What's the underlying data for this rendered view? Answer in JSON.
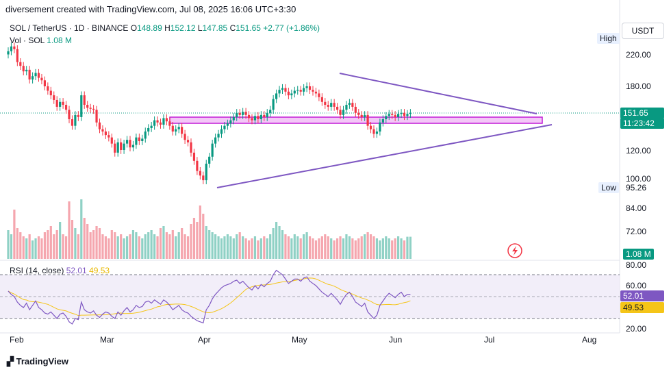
{
  "header": {
    "text": "diversement created with TradingView.com, Jul 08, 2025 16:06 UTC+3:30"
  },
  "legend": {
    "symbol": "SOL / TetherUS · 1D · BINANCE",
    "o_label": "O",
    "o": "148.89",
    "h_label": "H",
    "h": "152.12",
    "l_label": "L",
    "l": "147.85",
    "c_label": "C",
    "c": "151.65",
    "change": "+2.77 (+1.86%)",
    "vol_label": "Vol · SOL",
    "vol": "1.08 M",
    "rsi_label": "RSI (14, close)",
    "rsi": "52.01",
    "rsi_ma": "49.53"
  },
  "currency_button": "USDT",
  "price_axis": [
    "220.00",
    "180.00",
    "150.00",
    "120.00",
    "100.00",
    "84.00",
    "72.00"
  ],
  "tags": {
    "high": "High",
    "low": "Low",
    "low_value": "95.26",
    "last_price": "151.65",
    "countdown": "11:23:42",
    "volume": "1.08 M",
    "rsi": "52.01",
    "rsi_ma": "49.53"
  },
  "rsi_axis": [
    "80.00",
    "60.00",
    "20.00"
  ],
  "time_axis": [
    "Feb",
    "Mar",
    "Apr",
    "May",
    "Jun",
    "Jul",
    "Aug"
  ],
  "footer": {
    "logo": "TradingView"
  },
  "colors": {
    "up": "#089981",
    "down": "#f23645",
    "trend": "#7e57c2",
    "zone": "#c11ad6",
    "rsi": "#7e57c2",
    "rsi_ma": "#f5c518"
  },
  "chart_data": {
    "type": "candlestick",
    "symbol": "SOL/USDT",
    "interval": "1D",
    "y_scale": "log",
    "ylim": [
      88,
      245
    ],
    "closes": [
      225,
      232,
      228,
      210,
      205,
      198,
      200,
      188,
      192,
      196,
      190,
      187,
      180,
      175,
      170,
      165,
      158,
      163,
      160,
      155,
      146,
      140,
      150,
      148,
      170,
      160,
      157,
      156,
      155,
      143,
      137,
      135,
      132,
      130,
      125,
      118,
      126,
      120,
      125,
      128,
      122,
      124,
      130,
      127,
      129,
      135,
      138,
      140,
      145,
      143,
      141,
      147,
      144,
      140,
      135,
      137,
      139,
      133,
      128,
      126,
      118,
      112,
      105,
      102,
      99,
      110,
      115,
      125,
      130,
      133,
      137,
      140,
      142,
      145,
      148,
      152,
      150,
      153,
      150,
      147,
      145,
      149,
      146,
      150,
      148,
      152,
      155,
      166,
      172,
      176,
      178,
      174,
      170,
      172,
      175,
      176,
      174,
      178,
      180,
      176,
      174,
      172,
      168,
      163,
      160,
      158,
      162,
      158,
      155,
      150,
      155,
      160,
      162,
      158,
      152,
      150,
      148,
      150,
      140,
      137,
      133,
      135,
      143,
      146,
      149,
      151,
      150,
      148,
      151,
      152,
      149,
      151,
      152
    ],
    "volumes_mSOL": [
      1.4,
      1.2,
      2.4,
      1.5,
      1.3,
      1.1,
      1.0,
      1.2,
      0.9,
      1.0,
      1.1,
      1.0,
      1.3,
      1.4,
      1.6,
      1.2,
      1.4,
      1.8,
      1.2,
      1.1,
      2.8,
      1.9,
      1.5,
      1.2,
      2.9,
      2.0,
      1.7,
      1.3,
      1.4,
      1.6,
      1.5,
      1.2,
      1.1,
      1.0,
      1.4,
      1.3,
      1.1,
      1.2,
      1.0,
      1.1,
      1.2,
      1.4,
      1.3,
      1.1,
      1.0,
      1.2,
      1.3,
      1.4,
      1.2,
      1.1,
      1.5,
      1.6,
      1.3,
      1.2,
      1.4,
      1.1,
      1.3,
      1.5,
      1.2,
      1.1,
      1.7,
      2.0,
      1.8,
      2.6,
      2.2,
      1.6,
      1.4,
      1.3,
      1.2,
      1.1,
      1.0,
      1.1,
      1.2,
      1.1,
      1.0,
      1.2,
      1.3,
      1.1,
      1.0,
      0.9,
      1.0,
      1.1,
      0.9,
      1.0,
      1.1,
      1.0,
      1.2,
      1.5,
      1.8,
      1.6,
      1.4,
      1.2,
      1.1,
      1.0,
      1.2,
      1.1,
      1.0,
      1.2,
      1.3,
      1.1,
      1.0,
      0.9,
      1.0,
      1.1,
      1.2,
      1.1,
      1.0,
      0.9,
      1.0,
      1.1,
      1.0,
      1.2,
      1.1,
      1.0,
      0.9,
      1.0,
      1.1,
      1.2,
      1.3,
      1.2,
      1.1,
      1.0,
      0.9,
      1.0,
      1.1,
      1.0,
      0.9,
      1.0,
      1.1,
      1.0,
      0.9,
      1.08,
      1.08
    ],
    "rsi": [
      55,
      52,
      50,
      45,
      42,
      40,
      44,
      38,
      42,
      46,
      40,
      38,
      35,
      34,
      36,
      33,
      30,
      34,
      35,
      32,
      27,
      25,
      30,
      29,
      45,
      38,
      36,
      35,
      37,
      33,
      31,
      34,
      36,
      35,
      32,
      30,
      36,
      33,
      37,
      40,
      36,
      38,
      42,
      40,
      41,
      45,
      46,
      44,
      47,
      45,
      43,
      47,
      45,
      42,
      38,
      40,
      42,
      38,
      36,
      35,
      32,
      30,
      28,
      27,
      26,
      38,
      42,
      48,
      52,
      55,
      58,
      60,
      61,
      62,
      64,
      65,
      62,
      64,
      61,
      58,
      56,
      60,
      57,
      61,
      59,
      62,
      64,
      70,
      74,
      72,
      70,
      66,
      62,
      64,
      66,
      66,
      64,
      67,
      68,
      64,
      62,
      60,
      57,
      54,
      52,
      50,
      53,
      50,
      47,
      43,
      48,
      52,
      54,
      50,
      45,
      43,
      41,
      44,
      36,
      33,
      30,
      33,
      42,
      46,
      50,
      53,
      51,
      49,
      52,
      54,
      50,
      52,
      52.01
    ],
    "rsi_ma_last": 49.53,
    "rsi_levels": [
      70,
      50,
      30
    ],
    "zone": [
      145,
      152
    ],
    "trendline_upper": {
      "from": [
        "May 08",
        195
      ],
      "to": [
        "Jul 18",
        153
      ]
    },
    "trendline_lower": {
      "from": [
        "Apr 07",
        95
      ],
      "to": [
        "Jul 20",
        141
      ]
    },
    "x_labels": [
      "Feb",
      "Mar",
      "Apr",
      "May",
      "Jun",
      "Jul",
      "Aug"
    ]
  }
}
